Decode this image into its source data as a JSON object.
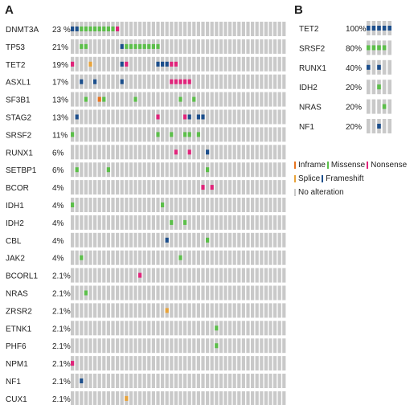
{
  "panels": {
    "a_label": "A",
    "b_label": "B"
  },
  "colors": {
    "Inframe": "#e8731e",
    "Missense": "#5cbf4a",
    "Nonsense": "#e0247a",
    "Splice": "#e8a33a",
    "Frameshift": "#1d4f8c",
    "No alteration": "#c9c9c9"
  },
  "legend": [
    {
      "key": "Inframe",
      "label": "Inframe"
    },
    {
      "key": "Missense",
      "label": "Missense"
    },
    {
      "key": "Nonsense",
      "label": "Nonsense"
    },
    {
      "key": "Splice",
      "label": "Splice"
    },
    {
      "key": "Frameshift",
      "label": "Frameshift"
    },
    {
      "key": "No alteration",
      "label": "No alteration"
    }
  ],
  "chart_data": [
    {
      "type": "oncoprint",
      "panel": "A",
      "n_samples": 48,
      "genes": [
        {
          "gene": "DNMT3A",
          "freq": "23 %",
          "alterations": [
            {
              "s": 0,
              "t": "Frameshift"
            },
            {
              "s": 1,
              "t": "Frameshift"
            },
            {
              "s": 2,
              "t": "Missense"
            },
            {
              "s": 3,
              "t": "Missense"
            },
            {
              "s": 4,
              "t": "Missense"
            },
            {
              "s": 5,
              "t": "Missense"
            },
            {
              "s": 6,
              "t": "Missense"
            },
            {
              "s": 7,
              "t": "Missense"
            },
            {
              "s": 8,
              "t": "Missense"
            },
            {
              "s": 9,
              "t": "Missense"
            },
            {
              "s": 10,
              "t": "Nonsense"
            }
          ]
        },
        {
          "gene": "TP53",
          "freq": "21%",
          "alterations": [
            {
              "s": 2,
              "t": "Missense"
            },
            {
              "s": 3,
              "t": "Missense"
            },
            {
              "s": 11,
              "t": "Frameshift"
            },
            {
              "s": 12,
              "t": "Missense"
            },
            {
              "s": 13,
              "t": "Missense"
            },
            {
              "s": 14,
              "t": "Missense"
            },
            {
              "s": 15,
              "t": "Missense"
            },
            {
              "s": 16,
              "t": "Missense"
            },
            {
              "s": 17,
              "t": "Missense"
            },
            {
              "s": 18,
              "t": "Missense"
            },
            {
              "s": 19,
              "t": "Missense"
            }
          ]
        },
        {
          "gene": "TET2",
          "freq": "19%",
          "alterations": [
            {
              "s": 0,
              "t": "Nonsense"
            },
            {
              "s": 4,
              "t": "Splice"
            },
            {
              "s": 11,
              "t": "Frameshift"
            },
            {
              "s": 12,
              "t": "Nonsense"
            },
            {
              "s": 19,
              "t": "Frameshift"
            },
            {
              "s": 20,
              "t": "Frameshift"
            },
            {
              "s": 21,
              "t": "Frameshift"
            },
            {
              "s": 22,
              "t": "Nonsense"
            },
            {
              "s": 23,
              "t": "Nonsense"
            }
          ]
        },
        {
          "gene": "ASXL1",
          "freq": "17%",
          "alterations": [
            {
              "s": 2,
              "t": "Frameshift"
            },
            {
              "s": 5,
              "t": "Frameshift"
            },
            {
              "s": 11,
              "t": "Frameshift"
            },
            {
              "s": 22,
              "t": "Nonsense"
            },
            {
              "s": 23,
              "t": "Nonsense"
            },
            {
              "s": 24,
              "t": "Nonsense"
            },
            {
              "s": 25,
              "t": "Nonsense"
            },
            {
              "s": 26,
              "t": "Nonsense"
            }
          ]
        },
        {
          "gene": "SF3B1",
          "freq": "13%",
          "alterations": [
            {
              "s": 3,
              "t": "Missense"
            },
            {
              "s": 6,
              "t": "Inframe"
            },
            {
              "s": 7,
              "t": "Missense"
            },
            {
              "s": 14,
              "t": "Missense"
            },
            {
              "s": 24,
              "t": "Missense"
            },
            {
              "s": 27,
              "t": "Missense"
            }
          ]
        },
        {
          "gene": "STAG2",
          "freq": "13%",
          "alterations": [
            {
              "s": 1,
              "t": "Frameshift"
            },
            {
              "s": 19,
              "t": "Nonsense"
            },
            {
              "s": 25,
              "t": "Nonsense"
            },
            {
              "s": 26,
              "t": "Frameshift"
            },
            {
              "s": 28,
              "t": "Frameshift"
            },
            {
              "s": 29,
              "t": "Frameshift"
            }
          ]
        },
        {
          "gene": "SRSF2",
          "freq": "11%",
          "alterations": [
            {
              "s": 0,
              "t": "Missense"
            },
            {
              "s": 19,
              "t": "Missense"
            },
            {
              "s": 22,
              "t": "Missense"
            },
            {
              "s": 25,
              "t": "Missense"
            },
            {
              "s": 26,
              "t": "Missense"
            },
            {
              "s": 28,
              "t": "Missense"
            }
          ]
        },
        {
          "gene": "RUNX1",
          "freq": "6%",
          "alterations": [
            {
              "s": 23,
              "t": "Nonsense"
            },
            {
              "s": 26,
              "t": "Nonsense"
            },
            {
              "s": 30,
              "t": "Frameshift"
            }
          ]
        },
        {
          "gene": "SETBP1",
          "freq": "6%",
          "alterations": [
            {
              "s": 1,
              "t": "Missense"
            },
            {
              "s": 8,
              "t": "Missense"
            },
            {
              "s": 30,
              "t": "Missense"
            }
          ]
        },
        {
          "gene": "BCOR",
          "freq": "4%",
          "alterations": [
            {
              "s": 29,
              "t": "Nonsense"
            },
            {
              "s": 31,
              "t": "Nonsense"
            }
          ]
        },
        {
          "gene": "IDH1",
          "freq": "4%",
          "alterations": [
            {
              "s": 0,
              "t": "Missense"
            },
            {
              "s": 20,
              "t": "Missense"
            }
          ]
        },
        {
          "gene": "IDH2",
          "freq": "4%",
          "alterations": [
            {
              "s": 22,
              "t": "Missense"
            },
            {
              "s": 25,
              "t": "Missense"
            }
          ]
        },
        {
          "gene": "CBL",
          "freq": "4%",
          "alterations": [
            {
              "s": 21,
              "t": "Frameshift"
            },
            {
              "s": 30,
              "t": "Missense"
            }
          ]
        },
        {
          "gene": "JAK2",
          "freq": "4%",
          "alterations": [
            {
              "s": 2,
              "t": "Missense"
            },
            {
              "s": 24,
              "t": "Missense"
            }
          ]
        },
        {
          "gene": "BCORL1",
          "freq": "2.1%",
          "alterations": [
            {
              "s": 15,
              "t": "Nonsense"
            }
          ]
        },
        {
          "gene": "NRAS",
          "freq": "2.1%",
          "alterations": [
            {
              "s": 3,
              "t": "Missense"
            }
          ]
        },
        {
          "gene": "ZRSR2",
          "freq": "2.1%",
          "alterations": [
            {
              "s": 21,
              "t": "Splice"
            }
          ]
        },
        {
          "gene": "ETNK1",
          "freq": "2.1%",
          "alterations": [
            {
              "s": 32,
              "t": "Missense"
            }
          ]
        },
        {
          "gene": "PHF6",
          "freq": "2.1%",
          "alterations": [
            {
              "s": 32,
              "t": "Missense"
            }
          ]
        },
        {
          "gene": "NPM1",
          "freq": "2.1%",
          "alterations": [
            {
              "s": 0,
              "t": "Nonsense"
            }
          ]
        },
        {
          "gene": "NF1",
          "freq": "2.1%",
          "alterations": [
            {
              "s": 2,
              "t": "Frameshift"
            }
          ]
        },
        {
          "gene": "CUX1",
          "freq": "2.1%",
          "alterations": [
            {
              "s": 12,
              "t": "Splice"
            }
          ]
        }
      ]
    },
    {
      "type": "oncoprint",
      "panel": "B",
      "n_samples": 5,
      "genes": [
        {
          "gene": "TET2",
          "freq": "100%",
          "alterations": [
            {
              "s": 0,
              "t": "Frameshift"
            },
            {
              "s": 1,
              "t": "Frameshift"
            },
            {
              "s": 2,
              "t": "Frameshift"
            },
            {
              "s": 3,
              "t": "Frameshift"
            },
            {
              "s": 4,
              "t": "Frameshift"
            }
          ]
        },
        {
          "gene": "SRSF2",
          "freq": "80%",
          "alterations": [
            {
              "s": 0,
              "t": "Missense"
            },
            {
              "s": 1,
              "t": "Missense"
            },
            {
              "s": 2,
              "t": "Missense"
            },
            {
              "s": 3,
              "t": "Missense"
            }
          ]
        },
        {
          "gene": "RUNX1",
          "freq": "40%",
          "alterations": [
            {
              "s": 0,
              "t": "Frameshift"
            },
            {
              "s": 2,
              "t": "Frameshift"
            }
          ]
        },
        {
          "gene": "IDH2",
          "freq": "20%",
          "alterations": [
            {
              "s": 2,
              "t": "Missense"
            }
          ]
        },
        {
          "gene": "NRAS",
          "freq": "20%",
          "alterations": [
            {
              "s": 3,
              "t": "Missense"
            }
          ]
        },
        {
          "gene": "NF1",
          "freq": "20%",
          "alterations": [
            {
              "s": 2,
              "t": "Frameshift"
            }
          ]
        }
      ]
    }
  ]
}
